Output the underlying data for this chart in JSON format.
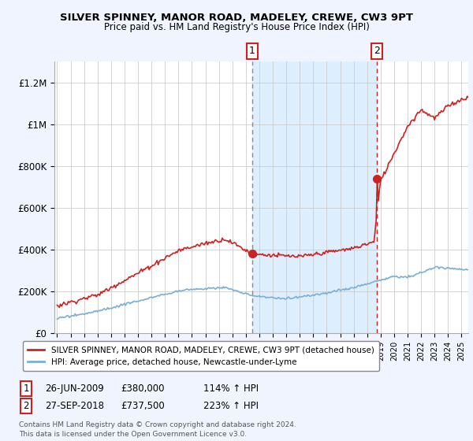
{
  "title": "SILVER SPINNEY, MANOR ROAD, MADELEY, CREWE, CW3 9PT",
  "subtitle": "Price paid vs. HM Land Registry's House Price Index (HPI)",
  "ylabel_ticks": [
    "£0",
    "£200K",
    "£400K",
    "£600K",
    "£800K",
    "£1M",
    "£1.2M"
  ],
  "ytick_values": [
    0,
    200000,
    400000,
    600000,
    800000,
    1000000,
    1200000
  ],
  "ylim": [
    0,
    1300000
  ],
  "xlim_start": 1994.8,
  "xlim_end": 2025.5,
  "hpi_color": "#7bafd4",
  "price_color": "#cc2222",
  "marker1_x": 2009.48,
  "marker1_y": 380000,
  "marker1_label": "1",
  "marker2_x": 2018.73,
  "marker2_y": 737500,
  "marker2_label": "2",
  "vline1_x": 2009.48,
  "vline2_x": 2018.73,
  "legend_line1": "SILVER SPINNEY, MANOR ROAD, MADELEY, CREWE, CW3 9PT (detached house)",
  "legend_line2": "HPI: Average price, detached house, Newcastle-under-Lyme",
  "note1_label": "1",
  "note1_date": "26-JUN-2009",
  "note1_price": "£380,000",
  "note1_hpi": "114% ↑ HPI",
  "note2_label": "2",
  "note2_date": "27-SEP-2018",
  "note2_price": "£737,500",
  "note2_hpi": "223% ↑ HPI",
  "footnote": "Contains HM Land Registry data © Crown copyright and database right 2024.\nThis data is licensed under the Open Government Licence v3.0.",
  "background_color": "#f0f4ff",
  "plot_bg_color": "#ffffff",
  "span_color": "#ddeeff"
}
